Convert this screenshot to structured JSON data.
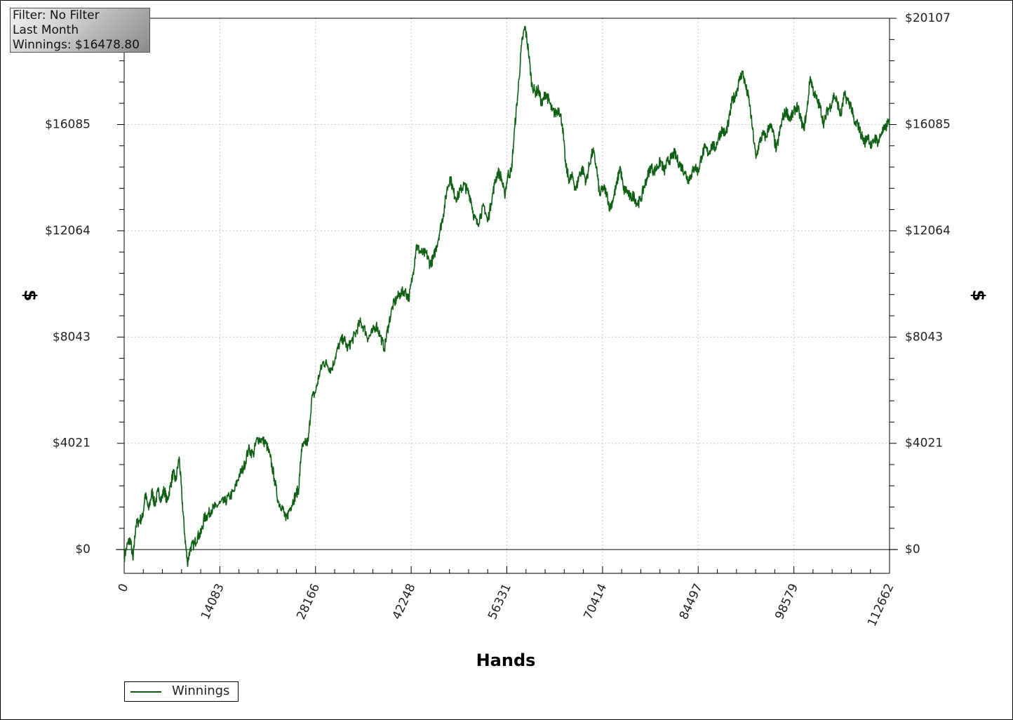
{
  "info_box": {
    "line1": "Filter: No Filter",
    "line2": "Last Month",
    "line3": "Winnings: $16478.80"
  },
  "chart_data": {
    "type": "line",
    "title": "",
    "xlabel": "Hands",
    "ylabel": "$",
    "xlim": [
      0,
      112662
    ],
    "ylim": [
      -900,
      20107
    ],
    "x_ticks": [
      0,
      14083,
      28166,
      42248,
      56331,
      70414,
      84497,
      98579,
      112662
    ],
    "x_tick_labels": [
      "0",
      "14083",
      "28166",
      "42248",
      "56331",
      "70414",
      "84497",
      "98579",
      "112662"
    ],
    "y_ticks": [
      0,
      4021,
      8043,
      12064,
      16085,
      20107
    ],
    "y_tick_labels": [
      "$0",
      "$4021",
      "$8043",
      "$12064",
      "$16085",
      "$20107"
    ],
    "grid": true,
    "legend_position": "bottom-left",
    "colors": {
      "series": "#0f5f14",
      "grid": "#c8c8c8"
    },
    "series": [
      {
        "name": "Winnings",
        "points": [
          [
            0,
            -300
          ],
          [
            500,
            200
          ],
          [
            900,
            400
          ],
          [
            1300,
            -400
          ],
          [
            1700,
            900
          ],
          [
            2200,
            1100
          ],
          [
            2700,
            1200
          ],
          [
            3100,
            2100
          ],
          [
            3600,
            1500
          ],
          [
            4100,
            2200
          ],
          [
            4500,
            1700
          ],
          [
            5000,
            2200
          ],
          [
            5500,
            1900
          ],
          [
            5900,
            2300
          ],
          [
            6300,
            1800
          ],
          [
            6800,
            2400
          ],
          [
            7200,
            2900
          ],
          [
            7600,
            2600
          ],
          [
            8100,
            3500
          ],
          [
            8500,
            2000
          ],
          [
            8900,
            600
          ],
          [
            9300,
            -500
          ],
          [
            9800,
            100
          ],
          [
            10300,
            200
          ],
          [
            10800,
            500
          ],
          [
            11300,
            600
          ],
          [
            11800,
            1200
          ],
          [
            12300,
            1300
          ],
          [
            12800,
            1500
          ],
          [
            13400,
            1600
          ],
          [
            14100,
            1750
          ],
          [
            14800,
            1800
          ],
          [
            15500,
            2000
          ],
          [
            16200,
            2200
          ],
          [
            16900,
            2800
          ],
          [
            17600,
            3100
          ],
          [
            18300,
            3800
          ],
          [
            19000,
            3600
          ],
          [
            19600,
            4200
          ],
          [
            20300,
            4150
          ],
          [
            20900,
            4000
          ],
          [
            21500,
            3500
          ],
          [
            22100,
            2700
          ],
          [
            22700,
            1800
          ],
          [
            23300,
            1600
          ],
          [
            23800,
            1100
          ],
          [
            24300,
            1500
          ],
          [
            24800,
            1800
          ],
          [
            25300,
            2100
          ],
          [
            25700,
            2300
          ],
          [
            26100,
            3800
          ],
          [
            26600,
            4000
          ],
          [
            27100,
            4100
          ],
          [
            27600,
            5700
          ],
          [
            28200,
            6000
          ],
          [
            28700,
            6600
          ],
          [
            29300,
            7100
          ],
          [
            29900,
            7000
          ],
          [
            30500,
            6800
          ],
          [
            31100,
            7300
          ],
          [
            31700,
            7800
          ],
          [
            32300,
            8000
          ],
          [
            32900,
            7600
          ],
          [
            33500,
            7900
          ],
          [
            34100,
            8200
          ],
          [
            34700,
            8600
          ],
          [
            35300,
            8400
          ],
          [
            35900,
            8000
          ],
          [
            36500,
            8200
          ],
          [
            37100,
            8500
          ],
          [
            37700,
            8100
          ],
          [
            38300,
            7600
          ],
          [
            38900,
            8500
          ],
          [
            39500,
            9200
          ],
          [
            40100,
            9500
          ],
          [
            40700,
            9700
          ],
          [
            41300,
            9800
          ],
          [
            41900,
            9500
          ],
          [
            42500,
            10400
          ],
          [
            43000,
            11500
          ],
          [
            43500,
            11300
          ],
          [
            44000,
            11200
          ],
          [
            44500,
            11200
          ],
          [
            45000,
            10800
          ],
          [
            45500,
            11000
          ],
          [
            46000,
            11500
          ],
          [
            46500,
            12100
          ],
          [
            47000,
            12700
          ],
          [
            47500,
            13600
          ],
          [
            48000,
            14100
          ],
          [
            48500,
            13500
          ],
          [
            49000,
            13300
          ],
          [
            49500,
            13600
          ],
          [
            50000,
            13800
          ],
          [
            50500,
            13600
          ],
          [
            51000,
            13300
          ],
          [
            51500,
            12600
          ],
          [
            52000,
            12300
          ],
          [
            52500,
            12700
          ],
          [
            53000,
            13000
          ],
          [
            53500,
            12400
          ],
          [
            54000,
            13100
          ],
          [
            54500,
            13800
          ],
          [
            55000,
            14300
          ],
          [
            55500,
            14100
          ],
          [
            56000,
            13400
          ],
          [
            56500,
            14200
          ],
          [
            57000,
            14300
          ],
          [
            57500,
            16000
          ],
          [
            58000,
            17400
          ],
          [
            58500,
            19100
          ],
          [
            59000,
            19800
          ],
          [
            59500,
            18900
          ],
          [
            60000,
            17600
          ],
          [
            60500,
            17300
          ],
          [
            61000,
            17400
          ],
          [
            61500,
            16800
          ],
          [
            62000,
            17300
          ],
          [
            62500,
            17000
          ],
          [
            63000,
            16600
          ],
          [
            63500,
            16500
          ],
          [
            64000,
            16700
          ],
          [
            64500,
            16100
          ],
          [
            65000,
            14500
          ],
          [
            65500,
            14000
          ],
          [
            66000,
            14100
          ],
          [
            66500,
            13600
          ],
          [
            67000,
            14200
          ],
          [
            67500,
            14400
          ],
          [
            68000,
            13900
          ],
          [
            68500,
            14600
          ],
          [
            69000,
            15100
          ],
          [
            69500,
            14500
          ],
          [
            70000,
            13400
          ],
          [
            70500,
            13700
          ],
          [
            71000,
            13500
          ],
          [
            71500,
            12900
          ],
          [
            72000,
            13300
          ],
          [
            72500,
            13800
          ],
          [
            73000,
            14500
          ],
          [
            73500,
            13600
          ],
          [
            74000,
            13600
          ],
          [
            74500,
            13300
          ],
          [
            75000,
            13400
          ],
          [
            75500,
            13100
          ],
          [
            76000,
            13200
          ],
          [
            76500,
            13700
          ],
          [
            77000,
            14100
          ],
          [
            77500,
            14500
          ],
          [
            78000,
            14300
          ],
          [
            78500,
            14500
          ],
          [
            79000,
            14700
          ],
          [
            79500,
            14300
          ],
          [
            80000,
            14700
          ],
          [
            80500,
            14800
          ],
          [
            81000,
            15000
          ],
          [
            81500,
            14700
          ],
          [
            82000,
            14500
          ],
          [
            82500,
            14300
          ],
          [
            83000,
            14000
          ],
          [
            83500,
            14200
          ],
          [
            84000,
            14500
          ],
          [
            84500,
            14300
          ],
          [
            85000,
            14900
          ],
          [
            85500,
            15200
          ],
          [
            86000,
            15000
          ],
          [
            86500,
            15300
          ],
          [
            87000,
            15200
          ],
          [
            87500,
            15600
          ],
          [
            88000,
            15900
          ],
          [
            88500,
            15700
          ],
          [
            89000,
            16200
          ],
          [
            89500,
            17000
          ],
          [
            90000,
            17200
          ],
          [
            90500,
            17700
          ],
          [
            91000,
            18100
          ],
          [
            91500,
            17500
          ],
          [
            92000,
            17000
          ],
          [
            92500,
            15900
          ],
          [
            93000,
            14800
          ],
          [
            93500,
            15400
          ],
          [
            94000,
            15700
          ],
          [
            94500,
            15600
          ],
          [
            95000,
            16100
          ],
          [
            95500,
            15800
          ],
          [
            96000,
            15100
          ],
          [
            96500,
            15800
          ],
          [
            97000,
            16400
          ],
          [
            97500,
            16600
          ],
          [
            98000,
            16300
          ],
          [
            98500,
            16500
          ],
          [
            99000,
            16800
          ],
          [
            99500,
            16400
          ],
          [
            100000,
            15900
          ],
          [
            100500,
            16600
          ],
          [
            101000,
            17900
          ],
          [
            101500,
            17300
          ],
          [
            102000,
            17000
          ],
          [
            102500,
            16700
          ],
          [
            103000,
            16100
          ],
          [
            103500,
            16600
          ],
          [
            104000,
            16800
          ],
          [
            104500,
            17200
          ],
          [
            105000,
            16900
          ],
          [
            105500,
            16400
          ],
          [
            106000,
            17200
          ],
          [
            106500,
            17000
          ],
          [
            107000,
            16800
          ],
          [
            107500,
            16100
          ],
          [
            108000,
            16100
          ],
          [
            108500,
            15700
          ],
          [
            109000,
            15400
          ],
          [
            109500,
            15700
          ],
          [
            110000,
            15200
          ],
          [
            110500,
            15600
          ],
          [
            111000,
            15400
          ],
          [
            111500,
            15800
          ],
          [
            112000,
            15900
          ],
          [
            112662,
            16300
          ]
        ]
      }
    ]
  }
}
